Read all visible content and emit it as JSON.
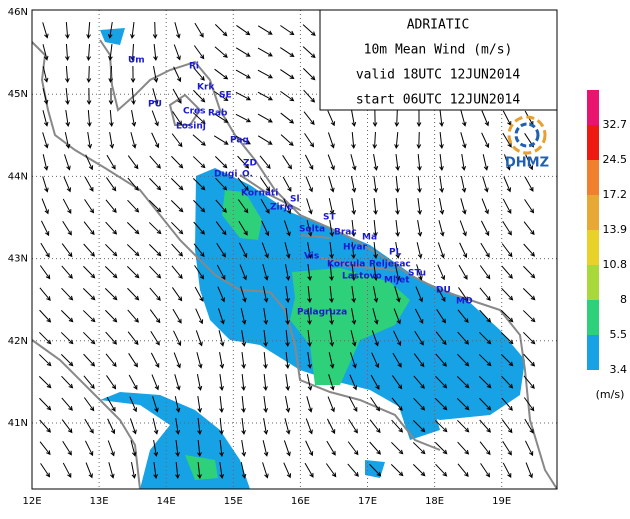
{
  "map": {
    "title_lines": [
      "ADRIATIC",
      "10m  Mean Wind (m/s)",
      "valid 18UTC  12JUN2014",
      "start 06UTC  12JUN2014"
    ],
    "lat_labels": [
      "46N",
      "45N",
      "44N",
      "43N",
      "42N",
      "41N"
    ],
    "lon_labels": [
      "12E",
      "13E",
      "14E",
      "15E",
      "16E",
      "17E",
      "18E",
      "19E"
    ],
    "places": [
      "Um",
      "Ri",
      "Krk",
      "SE",
      "PU",
      "Cres",
      "Rab",
      "Losinj",
      "Pag",
      "ZD",
      "Dugi",
      "O.",
      "Kornati",
      "Sl",
      "Zirje",
      "ST",
      "Solta",
      "Brac",
      "Ma",
      "Hvar",
      "Vis",
      "PL",
      "Korcula",
      "Peljesac",
      "Lastovo",
      "Mljet",
      "STu",
      "DU",
      "Palagruza",
      "MO"
    ],
    "logo": "DHMZ",
    "legend": {
      "levels": [
        3.4,
        5.5,
        8,
        10.8,
        13.9,
        17.2,
        24.5,
        32.7
      ],
      "colors": [
        "#17a2e6",
        "#2fd07a",
        "#a8d83a",
        "#e8d22a",
        "#e8a834",
        "#f0802e",
        "#ee1a12",
        "#e8146e"
      ],
      "unit": "(m/s)"
    }
  }
}
